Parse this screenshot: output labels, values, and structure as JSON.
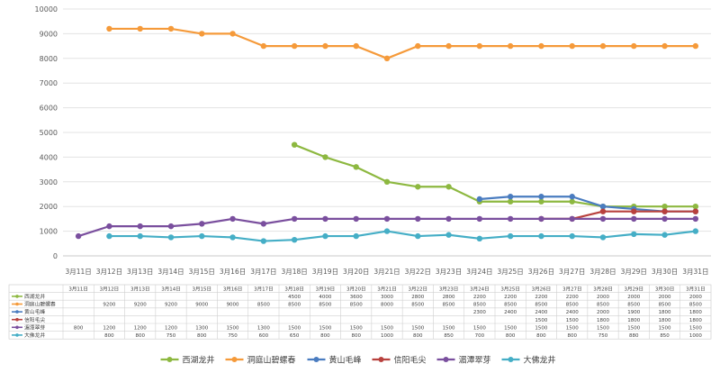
{
  "chart_data": {
    "type": "line",
    "categories": [
      "3月11日",
      "3月12日",
      "3月13日",
      "3月14日",
      "3月15日",
      "3月16日",
      "3月17日",
      "3月18日",
      "3月19日",
      "3月20日",
      "3月21日",
      "3月22日",
      "3月23日",
      "3月24日",
      "3月25日",
      "3月26日",
      "3月27日",
      "3月28日",
      "3月29日",
      "3月30日",
      "3月31日"
    ],
    "ylim": [
      0,
      10000
    ],
    "yticks": [
      0,
      1000,
      2000,
      3000,
      4000,
      5000,
      6000,
      7000,
      8000,
      9000,
      10000
    ],
    "grid": true,
    "legend_position": "bottom",
    "data_table": true,
    "series": [
      {
        "name": "西湖龙井",
        "color": "#8db840",
        "values": [
          null,
          null,
          null,
          null,
          null,
          null,
          null,
          4500,
          4000,
          3600,
          3000,
          2800,
          2800,
          2200,
          2200,
          2200,
          2200,
          2000,
          2000,
          2000,
          2000
        ]
      },
      {
        "name": "洞庭山碧螺春",
        "color": "#f59a3a",
        "values": [
          null,
          9200,
          9200,
          9200,
          9000,
          9000,
          8500,
          8500,
          8500,
          8500,
          8000,
          8500,
          8500,
          8500,
          8500,
          8500,
          8500,
          8500,
          8500,
          8500,
          8500
        ]
      },
      {
        "name": "黄山毛峰",
        "color": "#4a7cc0",
        "values": [
          null,
          null,
          null,
          null,
          null,
          null,
          null,
          null,
          null,
          null,
          null,
          null,
          null,
          2300,
          2400,
          2400,
          2400,
          2000,
          1900,
          1800,
          1800
        ]
      },
      {
        "name": "信阳毛尖",
        "color": "#b8413e",
        "values": [
          null,
          null,
          null,
          null,
          null,
          null,
          null,
          null,
          null,
          null,
          null,
          null,
          null,
          null,
          null,
          1500,
          1500,
          1800,
          1800,
          1800,
          1800
        ]
      },
      {
        "name": "湄潭翠芽",
        "color": "#7a4f9e",
        "values": [
          800,
          1200,
          1200,
          1200,
          1300,
          1500,
          1300,
          1500,
          1500,
          1500,
          1500,
          1500,
          1500,
          1500,
          1500,
          1500,
          1500,
          1500,
          1500,
          1500,
          1500
        ]
      },
      {
        "name": "大佛龙井",
        "color": "#45aec6",
        "values": [
          null,
          800,
          800,
          750,
          800,
          750,
          600,
          650,
          800,
          800,
          1000,
          800,
          850,
          700,
          800,
          800,
          800,
          750,
          880,
          850,
          1000
        ]
      }
    ]
  }
}
